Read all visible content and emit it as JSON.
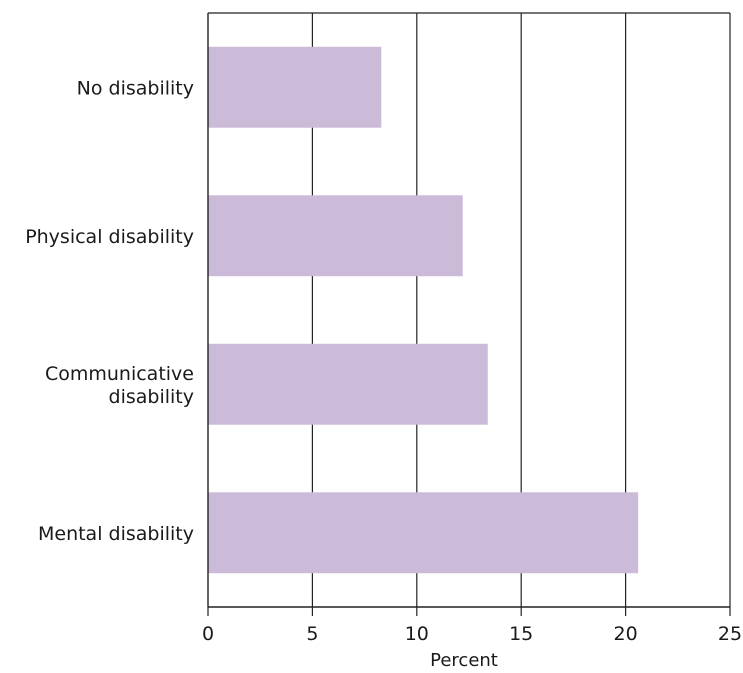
{
  "chart_data": {
    "type": "bar",
    "orientation": "horizontal",
    "title": "",
    "categories": [
      [
        "No disability"
      ],
      [
        "Physical disability"
      ],
      [
        "Communicative",
        "disability"
      ],
      [
        "Mental disability"
      ]
    ],
    "values": [
      8.3,
      12.2,
      13.4,
      20.6
    ],
    "xlabel": "Percent",
    "ylabel": "",
    "xlim": [
      0,
      25
    ],
    "xticks": [
      0,
      5,
      10,
      15,
      20,
      25
    ],
    "grid": "vertical",
    "legend": "none",
    "bar_color": "#cbbbd9"
  }
}
